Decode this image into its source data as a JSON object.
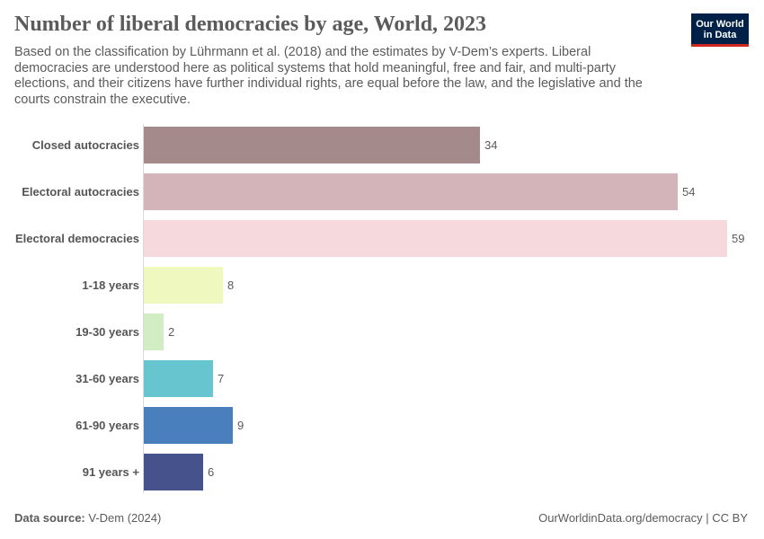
{
  "title": "Number of liberal democracies by age, World, 2023",
  "subtitle": "Based on the classification by Lührmann et al. (2018) and the estimates by V-Dem’s experts. Liberal democracies are understood here as political systems that hold meaningful, free and fair, and multi-party elections, and their citizens have further individual rights, are equal before the law, and the legislative and the courts constrain the executive.",
  "logo": {
    "line1": "Our World",
    "line2": "in Data"
  },
  "footer": {
    "source_label": "Data source:",
    "source_value": "V-Dem (2024)",
    "right": "OurWorldinData.org/democracy | CC BY"
  },
  "chart_data": {
    "type": "bar",
    "orientation": "horizontal",
    "categories": [
      "Closed autocracies",
      "Electoral autocracies",
      "Electoral democracies",
      "1-18 years",
      "19-30 years",
      "31-60 years",
      "61-90 years",
      "91 years +"
    ],
    "values": [
      34,
      54,
      59,
      8,
      2,
      7,
      9,
      6
    ],
    "colors": [
      "#a58a8b",
      "#d3b5b9",
      "#f5d9dd",
      "#eff8be",
      "#d2edc3",
      "#67c5cf",
      "#4a7fbd",
      "#46528c"
    ],
    "xlim": [
      0,
      59
    ],
    "grid": false,
    "legend": "none"
  }
}
